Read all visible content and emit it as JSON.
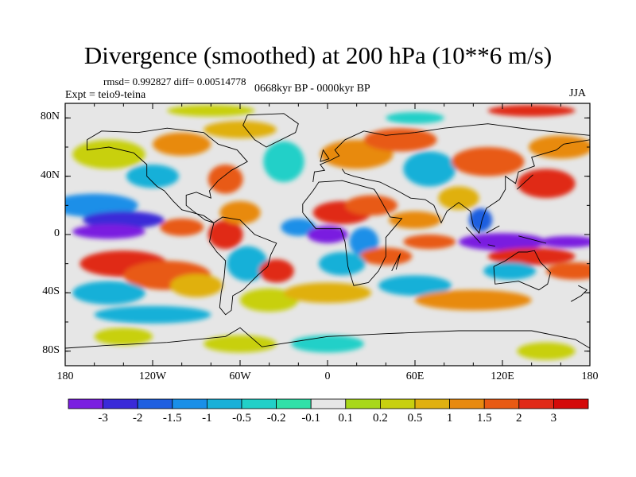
{
  "title": "Divergence (smoothed) at 200 hPa (10**6 m/s)",
  "stats": "rmsd= 0.992827 diff= 0.00514778",
  "experiment": "Expt = teio9-teina",
  "period": "0668kyr BP - 0000kyr BP",
  "season": "JJA",
  "map": {
    "projection": "cylindrical equidistant",
    "lon_range": [
      -180,
      180
    ],
    "lat_range": [
      -90,
      90
    ],
    "x_tick_labels": [
      "180",
      "120W",
      "60W",
      "0",
      "60E",
      "120E",
      "180"
    ],
    "y_tick_labels": [
      "80N",
      "40N",
      "0",
      "40S",
      "80S"
    ]
  },
  "colorbar": {
    "labels": [
      "-3",
      "-2",
      "-1.5",
      "-1",
      "-0.5",
      "-0.2",
      "-0.1",
      "0.1",
      "0.2",
      "0.5",
      "1",
      "1.5",
      "2",
      "3"
    ],
    "colors": [
      "#7a1fe0",
      "#3a2ad8",
      "#1f5fe0",
      "#1a8fe8",
      "#19b0d8",
      "#22d0c8",
      "#30e0a8",
      "#e6e6e6",
      "#a8d81a",
      "#c8d010",
      "#e0b010",
      "#e88a10",
      "#e85a14",
      "#e02a18",
      "#d40a0a"
    ]
  },
  "anomaly_regions": [
    {
      "name": "Pacific ITCZ negative",
      "lon": -140,
      "lat": 0,
      "sign": "negative"
    },
    {
      "name": "Indian Ocean negative",
      "lon": 120,
      "lat": -5,
      "sign": "negative"
    },
    {
      "name": "Atlantic equatorial negative",
      "lon": 0,
      "lat": 0,
      "sign": "negative"
    },
    {
      "name": "Africa positive",
      "lon": 10,
      "lat": 15,
      "sign": "positive"
    },
    {
      "name": "South Pacific positive",
      "lon": -110,
      "lat": -15,
      "sign": "positive"
    }
  ]
}
